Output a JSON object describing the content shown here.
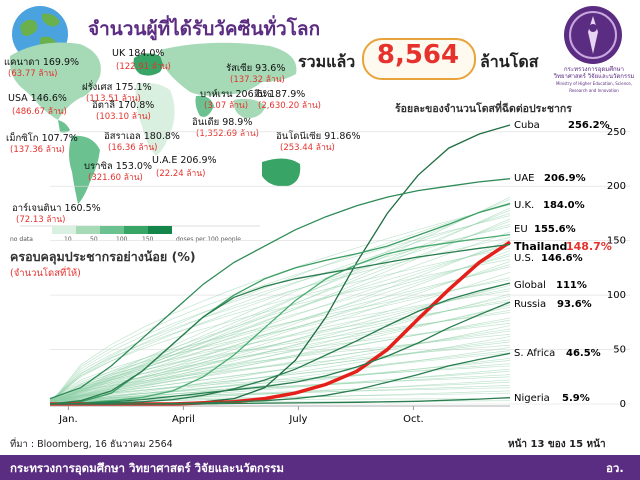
{
  "header": {
    "title": "จำนวนผู้ที่ได้รับวัคซีนทั่วโลก",
    "total_label": "รวมแล้ว",
    "total_value": "8,564",
    "total_unit": "ล้านโดส",
    "ministry_caption_1": "กระทรวงการอุดมศึกษา",
    "ministry_caption_2": "วิทยาศาสตร์ วิจัยและนวัตกรรม",
    "ministry_caption_3": "Ministry of Higher Education, Science, Research and Innovation"
  },
  "map": {
    "labels": [
      {
        "name": "แคนาดา 169.9%",
        "dose": "(63.77 ล้าน)"
      },
      {
        "name": "USA 146.6%",
        "dose": "(486.67 ล้าน)"
      },
      {
        "name": "เม็กซิโก 107.7%",
        "dose": "(137.36 ล้าน)"
      },
      {
        "name": "UK 184.0%",
        "dose": "(122.91 ล้าน)"
      },
      {
        "name": "ฝรั่งเศส 175.1%",
        "dose": "(113.51 ล้าน)"
      },
      {
        "name": "อิตาลี 170.8%",
        "dose": "(103.10 ล้าน)"
      },
      {
        "name": "อิสราเอล 180.8%",
        "dose": "(16.36 ล้าน)"
      },
      {
        "name": "บราซิล 153.0%",
        "dose": "(321.60 ล้าน)"
      },
      {
        "name": "อาร์เจนตินา 160.5%",
        "dose": "(72.13 ล้าน)"
      },
      {
        "name": "รัสเซีย 93.6%",
        "dose": "(137.32 ล้าน)"
      },
      {
        "name": "บาห์เรน 206.6%",
        "dose": "(3.07 ล้าน)"
      },
      {
        "name": "จีน 187.9%",
        "dose": "(2,630.20 ล้าน)"
      },
      {
        "name": "อินเดีย 98.9%",
        "dose": "(1,352.69 ล้าน)"
      },
      {
        "name": "อินโดนีเซีย 91.86%",
        "dose": "(253.44 ล้าน)"
      },
      {
        "name": "U.A.E 206.9%",
        "dose": "(22.24 ล้าน)"
      }
    ],
    "legend_no_data": "no data",
    "legend_ticks": [
      "10",
      "50",
      "100",
      "150"
    ],
    "legend_unit": "doses per 100 people",
    "legend_colors": [
      "#d9efdf",
      "#a6dab7",
      "#6cc190",
      "#38a567",
      "#13854a"
    ]
  },
  "chart_subtitle": "ครอบคลุมประชากรอย่างน้อย (%)",
  "chart_subtitle_note": "(จำนวนโดสที่ให้)",
  "chart_data": {
    "type": "line",
    "title": "ร้อยละของจำนวนโดสที่ฉีดต่อประชากร",
    "x_ticks": [
      "Jan.",
      "April",
      "July",
      "Oct."
    ],
    "y_ticks": [
      0,
      50,
      100,
      150,
      200,
      250
    ],
    "ylim": [
      0,
      270
    ],
    "grid": "horizontal",
    "series": [
      {
        "name": "Cuba",
        "label": "256.2%",
        "values": [
          0,
          0,
          0,
          0,
          0,
          2,
          5,
          15,
          40,
          80,
          130,
          175,
          210,
          235,
          248,
          256.2
        ],
        "color": "#1f6e43"
      },
      {
        "name": "UAE",
        "label": "206.9%",
        "values": [
          5,
          15,
          35,
          60,
          85,
          110,
          130,
          145,
          160,
          172,
          182,
          190,
          196,
          200,
          204,
          206.9
        ],
        "color": "#2e8b57"
      },
      {
        "name": "U.K.",
        "label": "184.0%",
        "values": [
          0,
          2,
          10,
          30,
          55,
          80,
          100,
          115,
          125,
          132,
          138,
          145,
          155,
          165,
          176,
          184
        ],
        "color": "#3a9d62"
      },
      {
        "name": "EU",
        "label": "155.6%",
        "values": [
          0,
          1,
          3,
          6,
          12,
          25,
          45,
          70,
          95,
          115,
          128,
          138,
          144,
          148,
          152,
          155.6
        ],
        "color": "#4aab70"
      },
      {
        "name": "Thailand",
        "label": "148.7%",
        "values": [
          0,
          0,
          0,
          0,
          0,
          1,
          2,
          5,
          10,
          18,
          30,
          50,
          78,
          105,
          130,
          148.7
        ],
        "color": "#e5201b"
      },
      {
        "name": "U.S.",
        "label": "146.6%",
        "values": [
          0,
          3,
          12,
          30,
          55,
          80,
          98,
          108,
          115,
          120,
          125,
          130,
          135,
          139,
          143,
          146.6
        ],
        "color": "#2a7d4f"
      },
      {
        "name": "Global",
        "label": "111%",
        "values": [
          0,
          0.5,
          1,
          2,
          4,
          8,
          14,
          22,
          32,
          45,
          58,
          72,
          85,
          96,
          104,
          111
        ],
        "color": "#2a7d4f"
      },
      {
        "name": "Russia",
        "label": "93.6%",
        "values": [
          0,
          0.5,
          2,
          4,
          7,
          10,
          13,
          16,
          20,
          26,
          34,
          44,
          56,
          70,
          82,
          93.6
        ],
        "color": "#2a7d4f"
      },
      {
        "name": "S. Africa",
        "label": "46.5%",
        "values": [
          0,
          0,
          0,
          0,
          0.5,
          1,
          2,
          3,
          5,
          8,
          13,
          20,
          27,
          35,
          41,
          46.5
        ],
        "color": "#2a7d4f"
      },
      {
        "name": "Nigeria",
        "label": "5.9%",
        "values": [
          0,
          0,
          0,
          0,
          0,
          0.2,
          0.5,
          0.8,
          1,
          1.3,
          1.6,
          2,
          2.5,
          3.5,
          4.5,
          5.9
        ],
        "color": "#2a7d4f"
      }
    ]
  },
  "footer": {
    "source": "ที่มา : Bloomberg, 16 ธันวาคม 2564",
    "page": "หน้า 13 ของ 15 หน้า",
    "ministry": "กระทรวงการอุดมศึกษา วิทยาศาสตร์ วิจัยและนวัตกรรม",
    "abbr": "อว."
  }
}
